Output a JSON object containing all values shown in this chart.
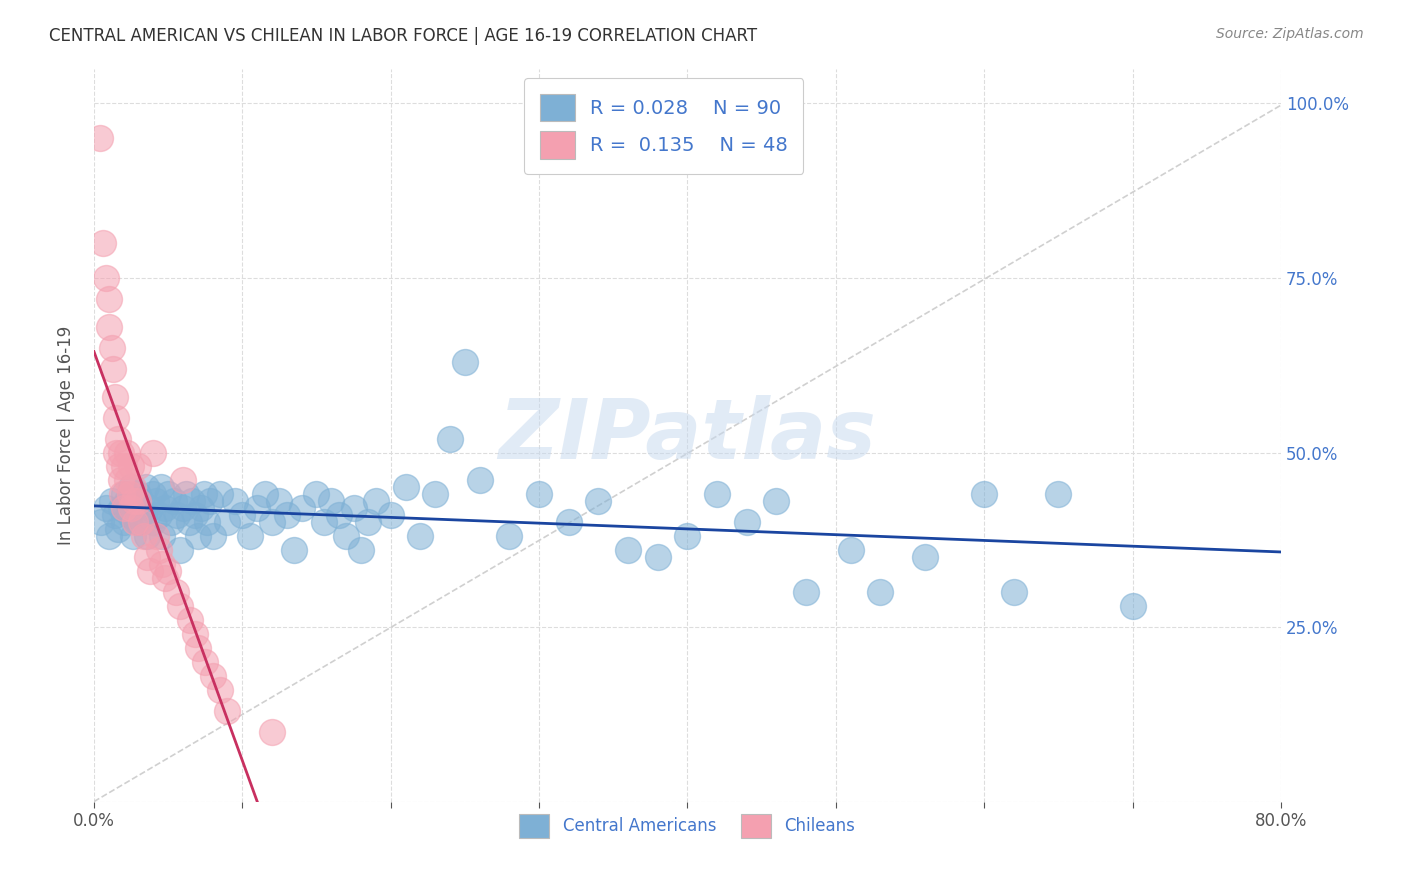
{
  "title": "CENTRAL AMERICAN VS CHILEAN IN LABOR FORCE | AGE 16-19 CORRELATION CHART",
  "source": "Source: ZipAtlas.com",
  "ylabel": "In Labor Force | Age 16-19",
  "xlim": [
    0.0,
    0.8
  ],
  "ylim": [
    0.0,
    1.05
  ],
  "xticks": [
    0.0,
    0.1,
    0.2,
    0.3,
    0.4,
    0.5,
    0.6,
    0.7,
    0.8
  ],
  "xticklabels": [
    "0.0%",
    "",
    "",
    "",
    "",
    "",
    "",
    "",
    "80.0%"
  ],
  "yticks_right": [
    0.25,
    0.5,
    0.75,
    1.0
  ],
  "yticklabels_right": [
    "25.0%",
    "50.0%",
    "75.0%",
    "100.0%"
  ],
  "blue_color": "#7EB0D5",
  "pink_color": "#F4A0B0",
  "blue_line_color": "#1A45A0",
  "pink_line_color": "#C83060",
  "diagonal_color": "#D0D0D0",
  "label_color": "#4477CC",
  "R_blue": 0.028,
  "N_blue": 90,
  "R_pink": 0.135,
  "N_pink": 48,
  "blue_scatter_x": [
    0.005,
    0.008,
    0.01,
    0.012,
    0.014,
    0.016,
    0.018,
    0.02,
    0.02,
    0.022,
    0.024,
    0.025,
    0.026,
    0.028,
    0.03,
    0.03,
    0.032,
    0.034,
    0.035,
    0.036,
    0.038,
    0.04,
    0.04,
    0.042,
    0.044,
    0.045,
    0.046,
    0.048,
    0.05,
    0.052,
    0.054,
    0.056,
    0.058,
    0.06,
    0.062,
    0.064,
    0.066,
    0.068,
    0.07,
    0.072,
    0.074,
    0.076,
    0.078,
    0.08,
    0.085,
    0.09,
    0.095,
    0.1,
    0.105,
    0.11,
    0.115,
    0.12,
    0.125,
    0.13,
    0.135,
    0.14,
    0.15,
    0.155,
    0.16,
    0.165,
    0.17,
    0.175,
    0.18,
    0.185,
    0.19,
    0.2,
    0.21,
    0.22,
    0.23,
    0.24,
    0.25,
    0.26,
    0.28,
    0.3,
    0.32,
    0.34,
    0.36,
    0.38,
    0.4,
    0.42,
    0.44,
    0.46,
    0.48,
    0.51,
    0.53,
    0.56,
    0.6,
    0.62,
    0.65,
    0.7
  ],
  "blue_scatter_y": [
    0.4,
    0.42,
    0.38,
    0.43,
    0.41,
    0.39,
    0.42,
    0.44,
    0.4,
    0.43,
    0.41,
    0.45,
    0.38,
    0.42,
    0.44,
    0.4,
    0.43,
    0.41,
    0.45,
    0.38,
    0.42,
    0.44,
    0.4,
    0.43,
    0.41,
    0.45,
    0.38,
    0.42,
    0.44,
    0.4,
    0.43,
    0.41,
    0.36,
    0.42,
    0.44,
    0.4,
    0.43,
    0.41,
    0.38,
    0.42,
    0.44,
    0.4,
    0.43,
    0.38,
    0.44,
    0.4,
    0.43,
    0.41,
    0.38,
    0.42,
    0.44,
    0.4,
    0.43,
    0.41,
    0.36,
    0.42,
    0.44,
    0.4,
    0.43,
    0.41,
    0.38,
    0.42,
    0.36,
    0.4,
    0.43,
    0.41,
    0.45,
    0.38,
    0.44,
    0.52,
    0.63,
    0.46,
    0.38,
    0.44,
    0.4,
    0.43,
    0.36,
    0.35,
    0.38,
    0.44,
    0.4,
    0.43,
    0.3,
    0.36,
    0.3,
    0.35,
    0.44,
    0.3,
    0.44,
    0.28
  ],
  "pink_scatter_x": [
    0.004,
    0.006,
    0.008,
    0.01,
    0.01,
    0.012,
    0.013,
    0.014,
    0.015,
    0.015,
    0.016,
    0.017,
    0.018,
    0.018,
    0.019,
    0.02,
    0.02,
    0.022,
    0.022,
    0.024,
    0.025,
    0.025,
    0.026,
    0.027,
    0.028,
    0.03,
    0.03,
    0.032,
    0.034,
    0.036,
    0.038,
    0.04,
    0.042,
    0.044,
    0.046,
    0.048,
    0.05,
    0.055,
    0.058,
    0.06,
    0.065,
    0.068,
    0.07,
    0.075,
    0.08,
    0.085,
    0.09,
    0.12
  ],
  "pink_scatter_y": [
    0.95,
    0.8,
    0.75,
    0.72,
    0.68,
    0.65,
    0.62,
    0.58,
    0.55,
    0.5,
    0.52,
    0.48,
    0.5,
    0.46,
    0.44,
    0.48,
    0.42,
    0.5,
    0.46,
    0.44,
    0.48,
    0.42,
    0.45,
    0.43,
    0.4,
    0.48,
    0.43,
    0.4,
    0.38,
    0.35,
    0.33,
    0.5,
    0.38,
    0.36,
    0.34,
    0.32,
    0.33,
    0.3,
    0.28,
    0.46,
    0.26,
    0.24,
    0.22,
    0.2,
    0.18,
    0.16,
    0.13,
    0.1
  ],
  "watermark": "ZIPatlas",
  "background_color": "#FFFFFF",
  "grid_color": "#DDDDDD"
}
